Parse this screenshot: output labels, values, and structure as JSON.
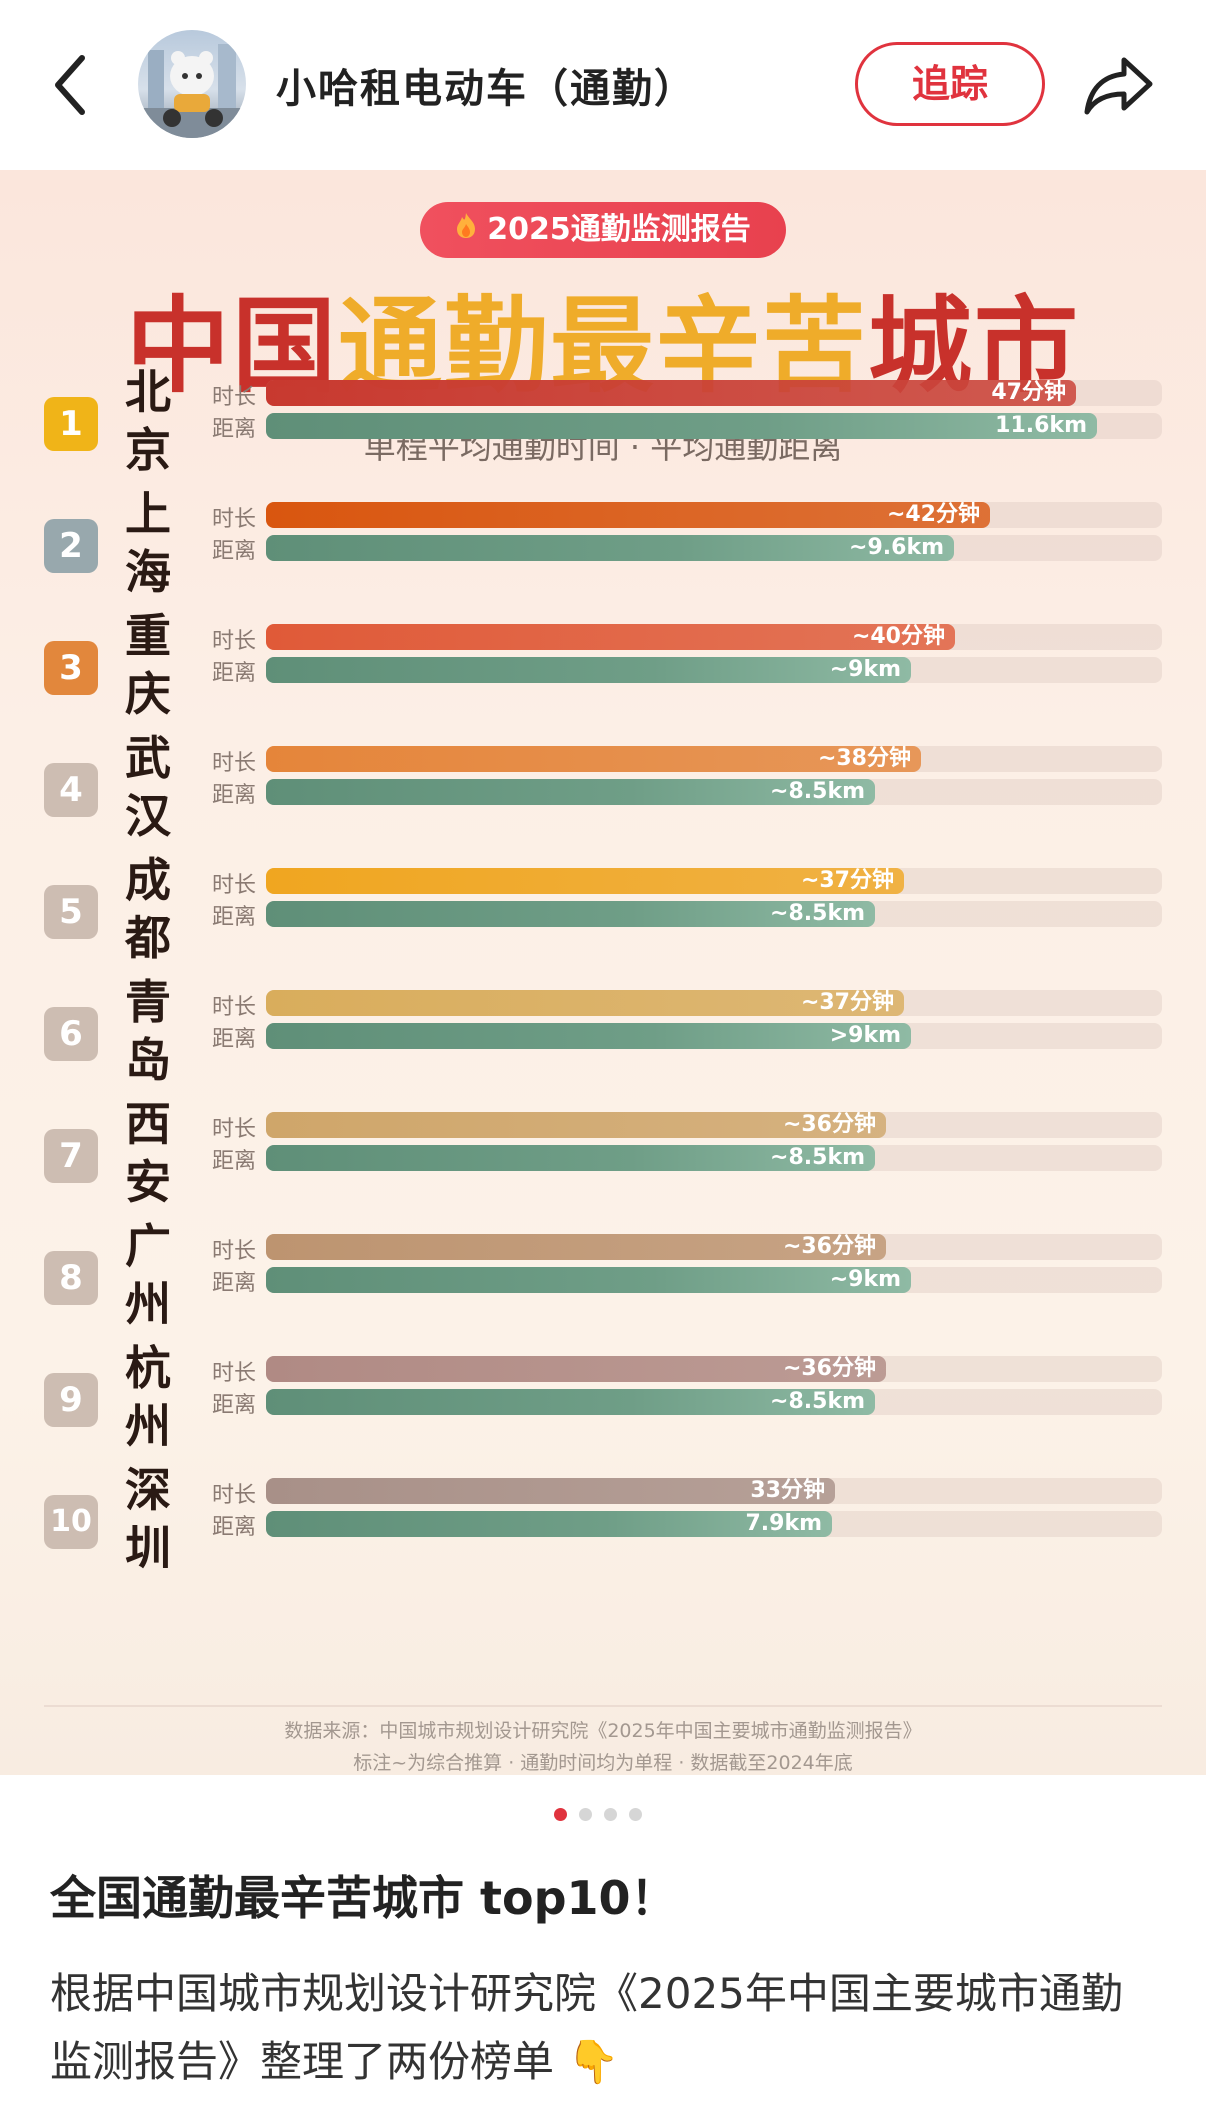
{
  "topbar": {
    "back_icon": "chevron-left-icon",
    "account_name": "小哈租电动车（通勤）",
    "follow_label": "追踪",
    "share_icon": "share-arrow-icon"
  },
  "poster": {
    "badge": "2025通勤监测报告",
    "badge_icon": "flame-icon",
    "title_part1": "中国",
    "title_part2": "通勤最辛苦",
    "title_part3": "城市",
    "subtitle": "单程平均通勤时间 · 平均通勤距离",
    "time_label": "时长",
    "dist_label": "距离",
    "footer_source": "数据来源：中国城市规划设计研究院《2025年中国主要城市通勤监测报告》",
    "footer_note": "标注~为综合推算 · 通勤时间均为单程 · 数据截至2024年底",
    "colors": {
      "title_red": "#c8312b",
      "title_gold": "#efac2a",
      "badge_red": "#e8414e",
      "distance_bar": "#6f9e87"
    }
  },
  "chart_data": {
    "type": "bar",
    "orientation": "horizontal",
    "categories": [
      "北京",
      "上海",
      "重庆",
      "武汉",
      "成都",
      "青岛",
      "西安",
      "广州",
      "杭州",
      "深圳"
    ],
    "ranks": [
      "1",
      "2",
      "3",
      "4",
      "5",
      "6",
      "7",
      "8",
      "9",
      "10"
    ],
    "series": [
      {
        "name": "时长",
        "values": [
          47,
          42,
          40,
          38,
          37,
          37,
          36,
          36,
          36,
          33
        ],
        "labels": [
          "47分钟",
          "~42分钟",
          "~40分钟",
          "~38分钟",
          "~37分钟",
          "~37分钟",
          "~36分钟",
          "~36分钟",
          "~36分钟",
          "33分钟"
        ],
        "colors": [
          "#c8392f",
          "#d9560f",
          "#e05a38",
          "#e5853a",
          "#f0a620",
          "#d9ad5c",
          "#cfa66a",
          "#bd9470",
          "#b08a84",
          "#a89088"
        ]
      },
      {
        "name": "距离",
        "values": [
          11.6,
          9.6,
          9,
          8.5,
          8.5,
          9,
          8.5,
          9,
          8.5,
          7.9
        ],
        "labels": [
          "11.6km",
          "~9.6km",
          "~9km",
          "~8.5km",
          "~8.5km",
          ">9km",
          "~8.5km",
          "~9km",
          "~8.5km",
          "7.9km"
        ]
      }
    ],
    "rank_badge_colors": [
      "#f0b418",
      "#98a8ad",
      "#e2873c",
      "#cdbdb2",
      "#cdbdb2",
      "#cdbdb2",
      "#cdbdb2",
      "#cdbdb2",
      "#cdbdb2",
      "#cdbdb2"
    ]
  },
  "carousel": {
    "count": 4,
    "active": 1
  },
  "post": {
    "title": "全国通勤最辛苦城市 top10！",
    "body": "根据中国城市规划设计研究院《2025年中国主要城市通勤监测报告》整理了两份榜单 👇"
  }
}
